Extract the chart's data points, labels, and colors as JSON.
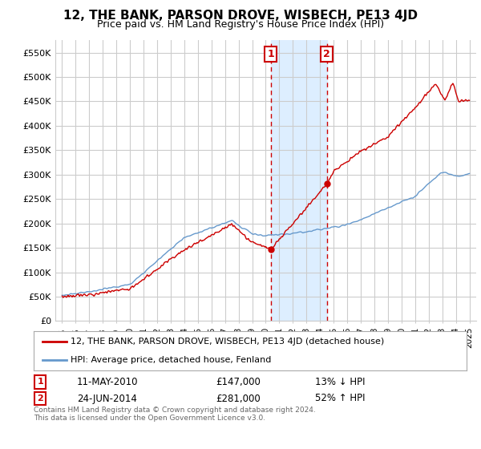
{
  "title": "12, THE BANK, PARSON DROVE, WISBECH, PE13 4JD",
  "subtitle": "Price paid vs. HM Land Registry's House Price Index (HPI)",
  "ylabel_ticks": [
    "£0",
    "£50K",
    "£100K",
    "£150K",
    "£200K",
    "£250K",
    "£300K",
    "£350K",
    "£400K",
    "£450K",
    "£500K",
    "£550K"
  ],
  "ylabel_vals": [
    0,
    50000,
    100000,
    150000,
    200000,
    250000,
    300000,
    350000,
    400000,
    450000,
    500000,
    550000
  ],
  "ylim": [
    0,
    575000
  ],
  "xlim_start": 1994.5,
  "xlim_end": 2025.5,
  "marker1_x": 2010.37,
  "marker1_y": 147000,
  "marker2_x": 2014.49,
  "marker2_y": 281000,
  "shade_x1": 2010.37,
  "shade_x2": 2014.49,
  "legend_line1": "12, THE BANK, PARSON DROVE, WISBECH, PE13 4JD (detached house)",
  "legend_line2": "HPI: Average price, detached house, Fenland",
  "note1_label": "1",
  "note1_date": "11-MAY-2010",
  "note1_price": "£147,000",
  "note1_hpi": "13% ↓ HPI",
  "note2_label": "2",
  "note2_date": "24-JUN-2014",
  "note2_price": "£281,000",
  "note2_hpi": "52% ↑ HPI",
  "footer": "Contains HM Land Registry data © Crown copyright and database right 2024.\nThis data is licensed under the Open Government Licence v3.0.",
  "red_color": "#cc0000",
  "blue_color": "#6699cc",
  "shade_color": "#ddeeff",
  "background_color": "#ffffff",
  "grid_color": "#cccccc"
}
